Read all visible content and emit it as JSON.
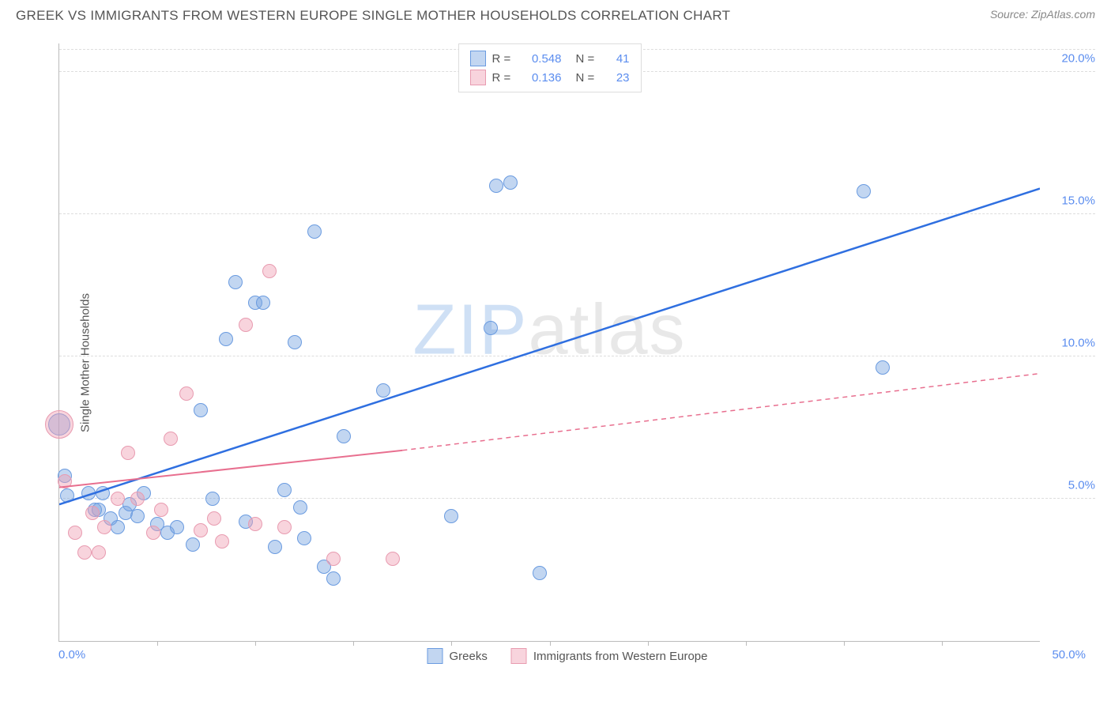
{
  "header": {
    "title": "GREEK VS IMMIGRANTS FROM WESTERN EUROPE SINGLE MOTHER HOUSEHOLDS CORRELATION CHART",
    "source": "Source: ZipAtlas.com"
  },
  "watermark": {
    "part1": "ZIP",
    "part2": "atlas"
  },
  "chart": {
    "type": "scatter",
    "background_color": "#ffffff",
    "grid_color": "#dddddd",
    "axis_color": "#bbbbbb",
    "tick_label_color": "#5b8def",
    "axis_label_color": "#555555",
    "ylabel": "Single Mother Households",
    "xlim": [
      0,
      50
    ],
    "ylim": [
      0,
      21
    ],
    "xtick_labels": {
      "start": "0.0%",
      "end": "50.0%"
    },
    "xtick_marks": [
      5,
      10,
      15,
      20,
      25,
      30,
      35,
      40,
      45
    ],
    "yticks": [
      {
        "v": 5,
        "label": "5.0%"
      },
      {
        "v": 10,
        "label": "10.0%"
      },
      {
        "v": 15,
        "label": "15.0%"
      },
      {
        "v": 20,
        "label": "20.0%"
      }
    ],
    "series": [
      {
        "name": "Greeks",
        "label": "Greeks",
        "fill": "rgba(120,165,225,0.45)",
        "stroke": "#6a9be0",
        "trend_color": "#2f6fe0",
        "trend_width": 2.5,
        "trend_dash": "",
        "trend": {
          "x1": 0,
          "y1": 4.8,
          "x2": 50,
          "y2": 15.9
        },
        "stats": {
          "R": "0.548",
          "N": "41"
        },
        "points": [
          {
            "x": 0,
            "y": 7.6,
            "r": 14
          },
          {
            "x": 0.3,
            "y": 5.8,
            "r": 9
          },
          {
            "x": 0.4,
            "y": 5.1,
            "r": 9
          },
          {
            "x": 1.5,
            "y": 5.2,
            "r": 9
          },
          {
            "x": 1.8,
            "y": 4.6,
            "r": 9
          },
          {
            "x": 2.0,
            "y": 4.6,
            "r": 9
          },
          {
            "x": 2.2,
            "y": 5.2,
            "r": 9
          },
          {
            "x": 2.6,
            "y": 4.3,
            "r": 9
          },
          {
            "x": 3.0,
            "y": 4.0,
            "r": 9
          },
          {
            "x": 3.4,
            "y": 4.5,
            "r": 9
          },
          {
            "x": 3.6,
            "y": 4.8,
            "r": 9
          },
          {
            "x": 4.0,
            "y": 4.4,
            "r": 9
          },
          {
            "x": 4.3,
            "y": 5.2,
            "r": 9
          },
          {
            "x": 5.0,
            "y": 4.1,
            "r": 9
          },
          {
            "x": 5.5,
            "y": 3.8,
            "r": 9
          },
          {
            "x": 6.0,
            "y": 4.0,
            "r": 9
          },
          {
            "x": 6.8,
            "y": 3.4,
            "r": 9
          },
          {
            "x": 7.2,
            "y": 8.1,
            "r": 9
          },
          {
            "x": 7.8,
            "y": 5.0,
            "r": 9
          },
          {
            "x": 8.5,
            "y": 10.6,
            "r": 9
          },
          {
            "x": 9.0,
            "y": 12.6,
            "r": 9
          },
          {
            "x": 9.5,
            "y": 4.2,
            "r": 9
          },
          {
            "x": 10.0,
            "y": 11.9,
            "r": 9
          },
          {
            "x": 10.4,
            "y": 11.9,
            "r": 9
          },
          {
            "x": 11.0,
            "y": 3.3,
            "r": 9
          },
          {
            "x": 11.5,
            "y": 5.3,
            "r": 9
          },
          {
            "x": 12.0,
            "y": 10.5,
            "r": 9
          },
          {
            "x": 12.3,
            "y": 4.7,
            "r": 9
          },
          {
            "x": 12.5,
            "y": 3.6,
            "r": 9
          },
          {
            "x": 13.0,
            "y": 14.4,
            "r": 9
          },
          {
            "x": 13.5,
            "y": 2.6,
            "r": 9
          },
          {
            "x": 14.0,
            "y": 2.2,
            "r": 9
          },
          {
            "x": 14.5,
            "y": 7.2,
            "r": 9
          },
          {
            "x": 16.5,
            "y": 8.8,
            "r": 9
          },
          {
            "x": 20.0,
            "y": 4.4,
            "r": 9
          },
          {
            "x": 22.0,
            "y": 11.0,
            "r": 9
          },
          {
            "x": 22.3,
            "y": 16.0,
            "r": 9
          },
          {
            "x": 23.0,
            "y": 16.1,
            "r": 9
          },
          {
            "x": 24.5,
            "y": 2.4,
            "r": 9
          },
          {
            "x": 41.0,
            "y": 15.8,
            "r": 9
          },
          {
            "x": 42.0,
            "y": 9.6,
            "r": 9
          }
        ]
      },
      {
        "name": "Immigrants from Western Europe",
        "label": "Immigrants from Western Europe",
        "fill": "rgba(240,160,180,0.45)",
        "stroke": "#e89bb0",
        "trend_color": "#e86f8f",
        "trend_width": 2,
        "trend_dash": "",
        "trend": {
          "x1": 0,
          "y1": 5.4,
          "x2": 17.5,
          "y2": 6.7
        },
        "trend_ext_dash": "6,5",
        "trend_ext": {
          "x1": 17.5,
          "y1": 6.7,
          "x2": 50,
          "y2": 9.4
        },
        "stats": {
          "R": "0.136",
          "N": "23"
        },
        "points": [
          {
            "x": 0,
            "y": 7.6,
            "r": 18
          },
          {
            "x": 0.3,
            "y": 5.6,
            "r": 9
          },
          {
            "x": 0.8,
            "y": 3.8,
            "r": 9
          },
          {
            "x": 1.3,
            "y": 3.1,
            "r": 9
          },
          {
            "x": 1.7,
            "y": 4.5,
            "r": 9
          },
          {
            "x": 2.0,
            "y": 3.1,
            "r": 9
          },
          {
            "x": 2.3,
            "y": 4.0,
            "r": 9
          },
          {
            "x": 3.0,
            "y": 5.0,
            "r": 9
          },
          {
            "x": 3.5,
            "y": 6.6,
            "r": 9
          },
          {
            "x": 4.0,
            "y": 5.0,
            "r": 9
          },
          {
            "x": 4.8,
            "y": 3.8,
            "r": 9
          },
          {
            "x": 5.2,
            "y": 4.6,
            "r": 9
          },
          {
            "x": 5.7,
            "y": 7.1,
            "r": 9
          },
          {
            "x": 6.5,
            "y": 8.7,
            "r": 9
          },
          {
            "x": 7.2,
            "y": 3.9,
            "r": 9
          },
          {
            "x": 7.9,
            "y": 4.3,
            "r": 9
          },
          {
            "x": 8.3,
            "y": 3.5,
            "r": 9
          },
          {
            "x": 9.5,
            "y": 11.1,
            "r": 9
          },
          {
            "x": 10.0,
            "y": 4.1,
            "r": 9
          },
          {
            "x": 10.7,
            "y": 13.0,
            "r": 9
          },
          {
            "x": 11.5,
            "y": 4.0,
            "r": 9
          },
          {
            "x": 14.0,
            "y": 2.9,
            "r": 9
          },
          {
            "x": 17.0,
            "y": 2.9,
            "r": 9
          }
        ]
      }
    ],
    "top_legend_labels": {
      "R": "R =",
      "N": "N ="
    },
    "bottom_legend": true
  }
}
